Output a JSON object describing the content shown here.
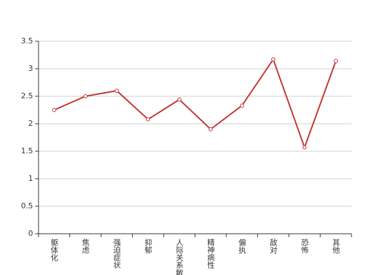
{
  "chart_data": {
    "type": "line",
    "categories": [
      "躯体化",
      "焦虑",
      "强迫症状",
      "抑郁",
      "人际关系敏感",
      "精神病性",
      "偏执",
      "敌对",
      "恐怖",
      "其他"
    ],
    "series": [
      {
        "color": "#c23531",
        "values": [
          2.25,
          2.5,
          2.6,
          2.08,
          2.44,
          1.9,
          2.33,
          3.17,
          1.57,
          3.14
        ]
      }
    ],
    "ylim": [
      0,
      3.5
    ],
    "yticks": [
      0,
      0.5,
      1,
      1.5,
      2,
      2.5,
      3,
      3.5
    ],
    "grid": true
  }
}
